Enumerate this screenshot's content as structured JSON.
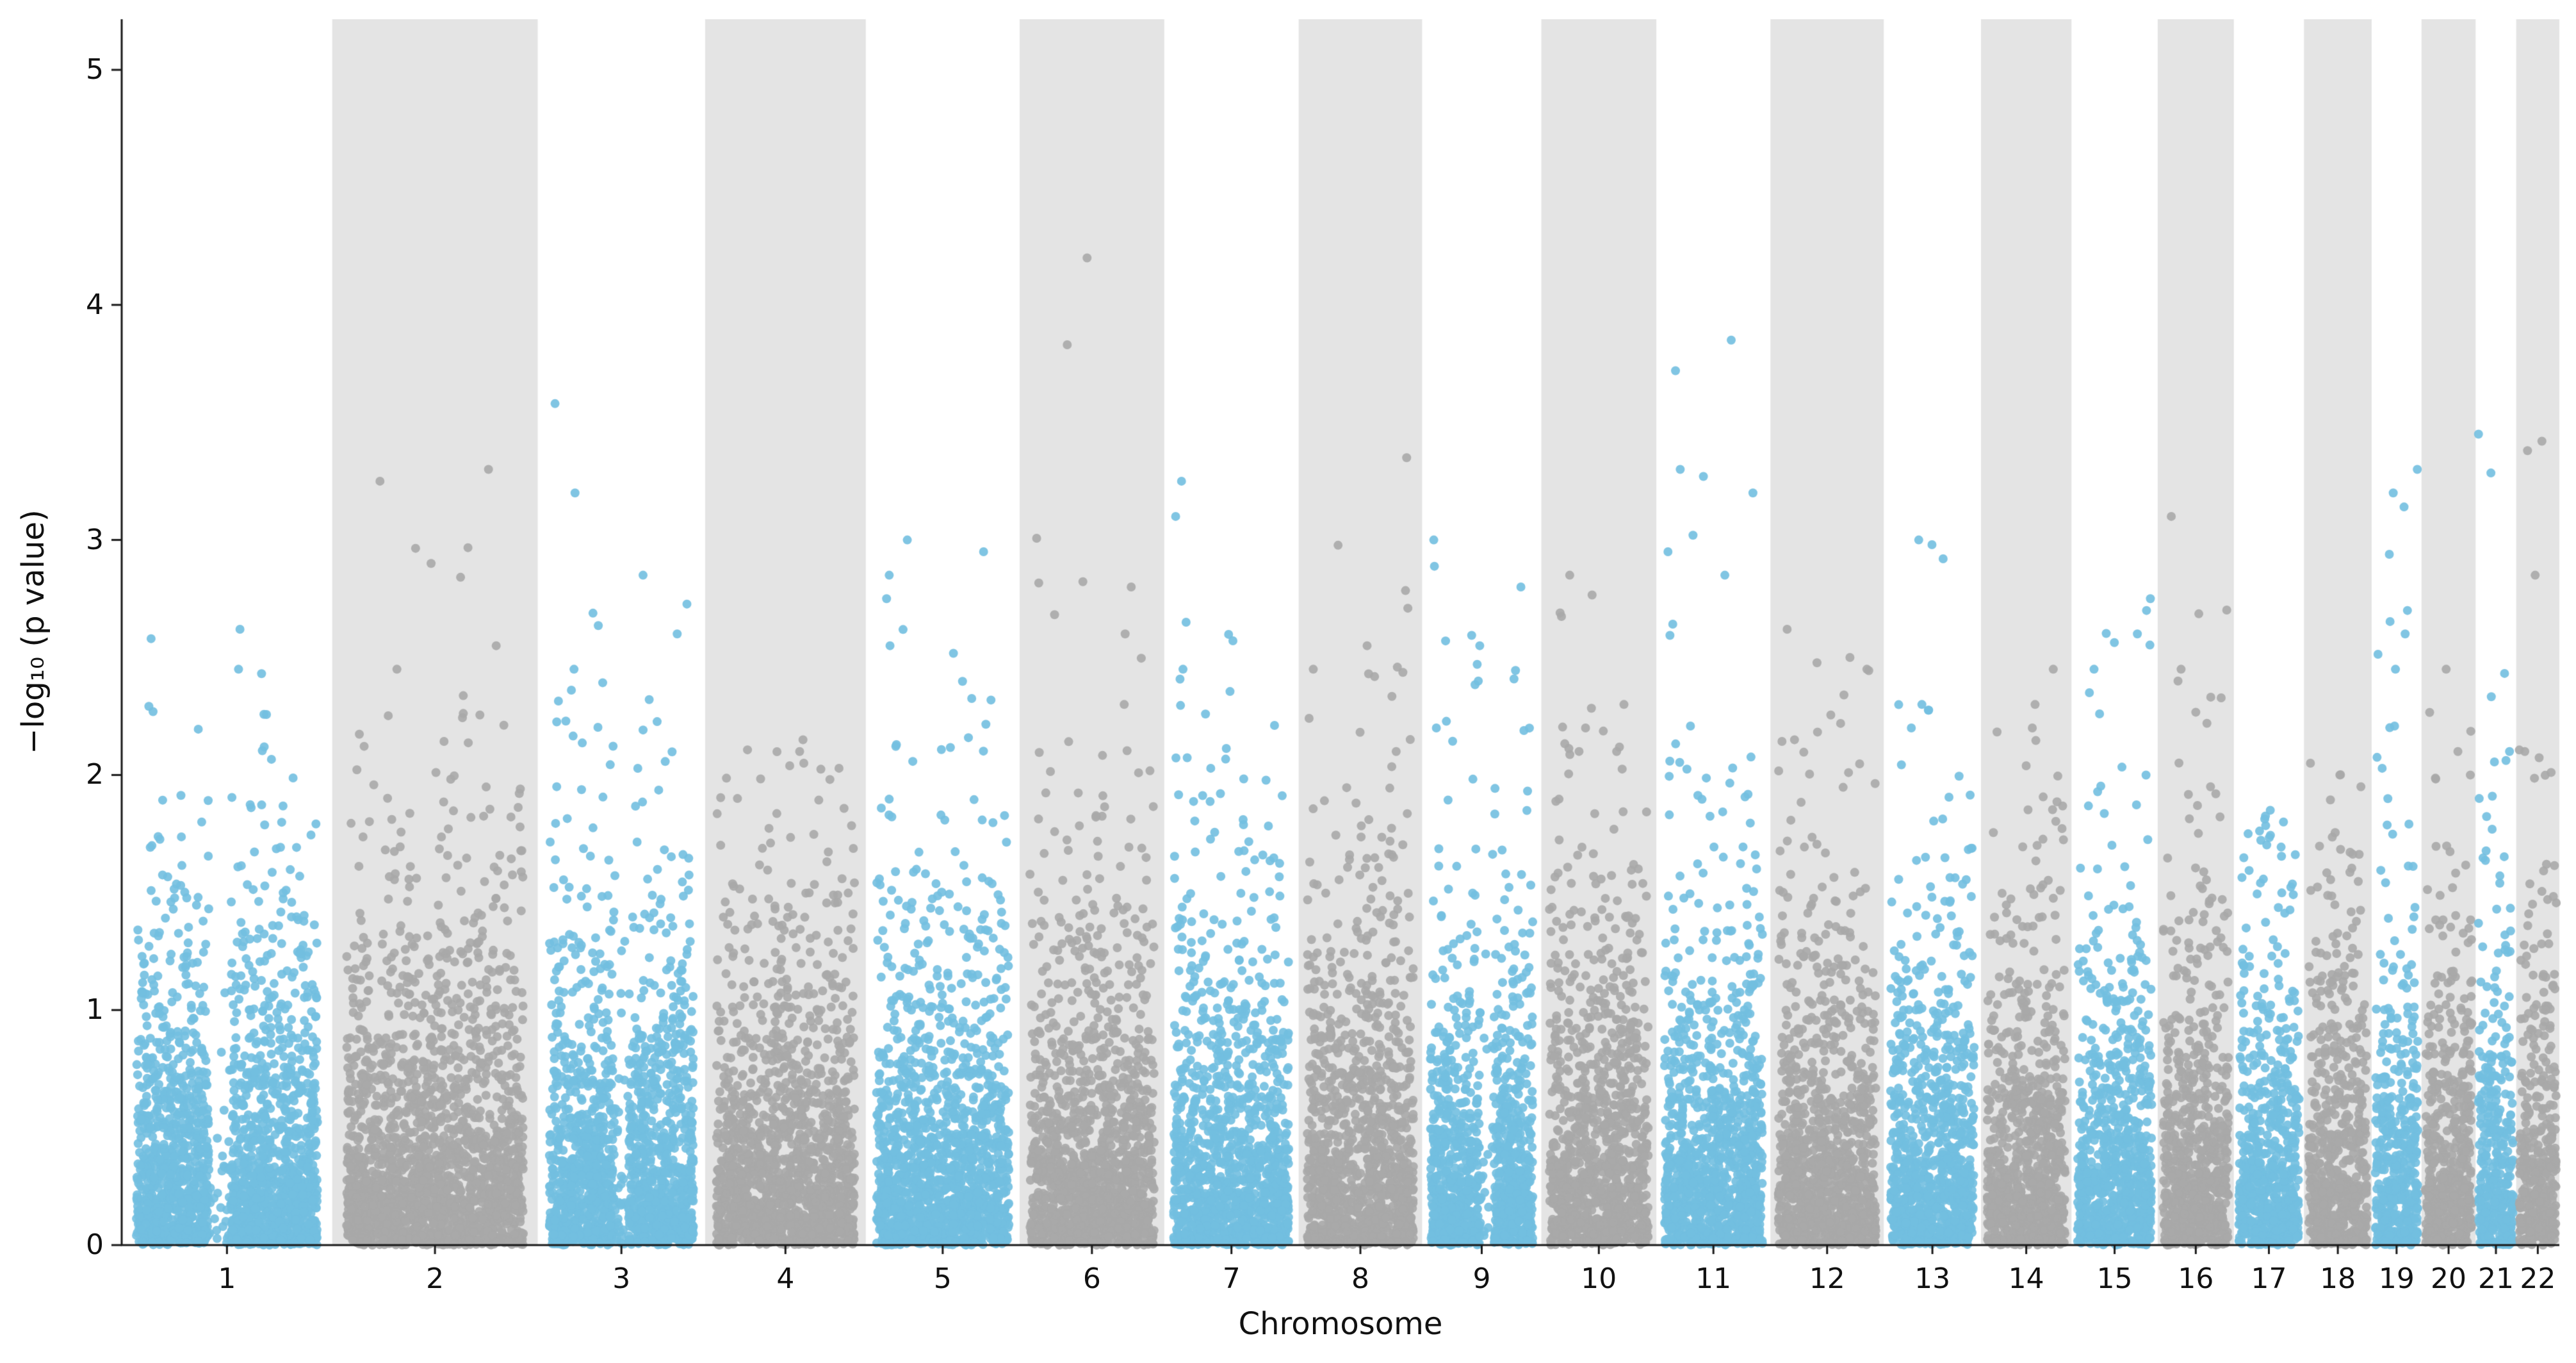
{
  "chart_data": {
    "type": "scatter",
    "subtype": "manhattan-plot",
    "title": "",
    "xlabel": "Chromosome",
    "ylabel": "−log₁₀ (p value)",
    "ylim": [
      0,
      5.2
    ],
    "yticks": [
      0,
      1,
      2,
      3,
      4,
      5
    ],
    "grid": false,
    "legend": null,
    "point_radius_px": 7,
    "seed": 42,
    "colors": {
      "odd_chrom_points": "#72BFE0",
      "even_chrom_points": "#A9A9A9",
      "even_chrom_band": "#E4E4E4",
      "axis": "#1a1a1a",
      "background": "#FFFFFF"
    },
    "chromosomes": [
      {
        "label": "1",
        "rel_length": 249,
        "n_points": 1992,
        "max_neglogp": 2.62,
        "peaks": [
          2.62,
          2.58,
          2.45,
          2.12
        ],
        "gap": [
          0.4,
          0.52
        ]
      },
      {
        "label": "2",
        "rel_length": 243,
        "n_points": 1944,
        "max_neglogp": 3.3,
        "peaks": [
          3.3,
          3.25,
          2.9,
          2.55,
          2.45
        ],
        "gap": null
      },
      {
        "label": "3",
        "rel_length": 198,
        "n_points": 1584,
        "max_neglogp": 3.58,
        "peaks": [
          3.58,
          3.2,
          2.85,
          2.45
        ],
        "gap": [
          0.45,
          0.55
        ]
      },
      {
        "label": "4",
        "rel_length": 190,
        "n_points": 1520,
        "max_neglogp": 2.15,
        "peaks": [
          2.15,
          2.1,
          2.05,
          1.9
        ],
        "gap": null
      },
      {
        "label": "5",
        "rel_length": 182,
        "n_points": 1456,
        "max_neglogp": 3.0,
        "peaks": [
          3.0,
          2.95,
          2.85,
          2.75,
          2.55
        ],
        "gap": null
      },
      {
        "label": "6",
        "rel_length": 171,
        "n_points": 1368,
        "max_neglogp": 4.2,
        "peaks": [
          4.2,
          2.8,
          2.6,
          2.3
        ],
        "gap": null
      },
      {
        "label": "7",
        "rel_length": 159,
        "n_points": 1272,
        "max_neglogp": 3.25,
        "peaks": [
          3.25,
          3.1,
          2.65,
          2.45
        ],
        "gap": null
      },
      {
        "label": "8",
        "rel_length": 146,
        "n_points": 1168,
        "max_neglogp": 3.35,
        "peaks": [
          3.35,
          2.55,
          2.45,
          2.1
        ],
        "gap": null
      },
      {
        "label": "9",
        "rel_length": 141,
        "n_points": 1128,
        "max_neglogp": 3.0,
        "peaks": [
          3.0,
          2.8,
          2.55,
          2.4
        ],
        "gap": [
          0.48,
          0.62
        ]
      },
      {
        "label": "10",
        "rel_length": 136,
        "n_points": 1088,
        "max_neglogp": 2.85,
        "peaks": [
          2.85,
          2.3,
          2.2,
          2.1
        ],
        "gap": null
      },
      {
        "label": "11",
        "rel_length": 135,
        "n_points": 1080,
        "max_neglogp": 3.85,
        "peaks": [
          3.85,
          3.72,
          3.3,
          3.27,
          3.2,
          3.02,
          2.95,
          2.85
        ],
        "gap": null
      },
      {
        "label": "12",
        "rel_length": 134,
        "n_points": 1072,
        "max_neglogp": 2.62,
        "peaks": [
          2.62,
          2.5,
          2.45,
          2.15
        ],
        "gap": null
      },
      {
        "label": "13",
        "rel_length": 115,
        "n_points": 920,
        "max_neglogp": 3.0,
        "peaks": [
          3.0,
          2.92,
          2.3,
          2.2
        ],
        "gap": null
      },
      {
        "label": "14",
        "rel_length": 107,
        "n_points": 856,
        "max_neglogp": 2.45,
        "peaks": [
          2.45,
          2.3,
          2.2
        ],
        "gap": null
      },
      {
        "label": "15",
        "rel_length": 102,
        "n_points": 816,
        "max_neglogp": 2.75,
        "peaks": [
          2.75,
          2.7,
          2.6,
          2.45,
          2.35
        ],
        "gap": null
      },
      {
        "label": "16",
        "rel_length": 90,
        "n_points": 720,
        "max_neglogp": 3.1,
        "peaks": [
          3.1,
          2.45,
          2.4
        ],
        "gap": null
      },
      {
        "label": "17",
        "rel_length": 83,
        "n_points": 664,
        "max_neglogp": 1.85,
        "peaks": [
          1.85,
          1.8,
          1.75
        ],
        "gap": null
      },
      {
        "label": "18",
        "rel_length": 80,
        "n_points": 640,
        "max_neglogp": 2.05,
        "peaks": [
          2.05,
          2.0,
          1.95
        ],
        "gap": null
      },
      {
        "label": "19",
        "rel_length": 59,
        "n_points": 472,
        "max_neglogp": 3.3,
        "peaks": [
          3.3,
          3.2,
          2.7,
          2.6,
          2.45
        ],
        "gap": null
      },
      {
        "label": "20",
        "rel_length": 64,
        "n_points": 512,
        "max_neglogp": 2.45,
        "peaks": [
          2.45,
          2.1,
          2.0
        ],
        "gap": null
      },
      {
        "label": "21",
        "rel_length": 48,
        "n_points": 384,
        "max_neglogp": 3.45,
        "peaks": [
          3.45,
          2.1,
          1.9
        ],
        "gap": null
      },
      {
        "label": "22",
        "rel_length": 51,
        "n_points": 408,
        "max_neglogp": 3.42,
        "peaks": [
          3.42,
          3.38,
          2.85,
          2.1
        ],
        "gap": null
      }
    ]
  }
}
